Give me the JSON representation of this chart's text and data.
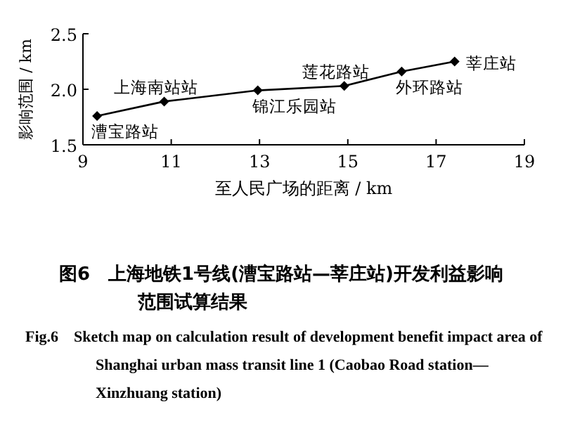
{
  "chart_data": {
    "type": "line",
    "title": "图6　上海地铁1号线(漕宝路站—莘庄站)开发利益影响范围试算结果",
    "subtitle": "Fig.6　Sketch map on calculation result of development benefit impact area of Shanghai urban mass transit line 1 (Caobao Road station—Xinzhuang station)",
    "xlabel": "至人民广场的距离 / km",
    "ylabel": "影响范围 / km",
    "x": [
      9.32,
      10.84,
      12.96,
      14.92,
      16.22,
      17.42
    ],
    "series": [
      {
        "color": "#000000",
        "values": [
          1.76,
          1.89,
          1.99,
          2.03,
          2.16,
          2.25
        ]
      }
    ],
    "marker": "diamond",
    "grid": false,
    "xlim": [
      9,
      19
    ],
    "xticks": [
      9,
      11,
      13,
      15,
      17,
      19
    ],
    "ylim": [
      1.5,
      2.5
    ],
    "yticks": [
      {
        "value": 1.5,
        "label": "1.5"
      },
      {
        "value": 2,
        "label": "2.0"
      },
      {
        "value": 2.5,
        "label": "2.5"
      }
    ],
    "annotations": [
      {
        "text": "漕宝路站",
        "x": 9.32,
        "y": 1.76
      },
      {
        "text": "上海南站站",
        "x": 10.84,
        "y": 1.89
      },
      {
        "text": "锦江乐园站",
        "x": 12.96,
        "y": 1.99
      },
      {
        "text": "莲花路站",
        "x": 14.92,
        "y": 2.03
      },
      {
        "text": "外环路站",
        "x": 16.22,
        "y": 2.16
      },
      {
        "text": "莘庄站",
        "x": 17.42,
        "y": 2.25
      }
    ]
  }
}
